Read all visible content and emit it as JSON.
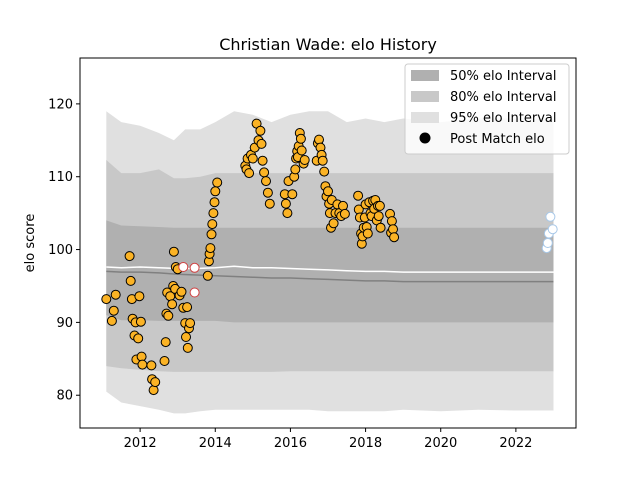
{
  "chart_data": {
    "type": "scatter",
    "title": "Christian Wade: elo History",
    "xlabel": "",
    "ylabel": "elo score",
    "xlim": [
      2010.4,
      2023.6
    ],
    "ylim": [
      75.5,
      126.3
    ],
    "xticks": [
      2012,
      2014,
      2016,
      2018,
      2020,
      2022
    ],
    "yticks": [
      80,
      90,
      100,
      110,
      120
    ],
    "grid": false,
    "legend_position": "top-right",
    "legend": [
      {
        "label": "50% elo Interval",
        "kind": "band",
        "color": "#b0b0b0"
      },
      {
        "label": "80% elo Interval",
        "kind": "band",
        "color": "#c8c8c8"
      },
      {
        "label": "95% elo Interval",
        "kind": "band",
        "color": "#e0e0e0"
      },
      {
        "label": "Post Match elo",
        "kind": "marker",
        "color": "#000000"
      }
    ],
    "colors": {
      "band_50": "#b0b0b0",
      "band_80": "#c8c8c8",
      "band_95": "#e0e0e0",
      "median_line": "#808080",
      "mean_line": "#ffffff",
      "point_fill": "#fbb325",
      "point_edge": "#000000",
      "hollow_edge": "#d04040",
      "future_fill": "#ffffff",
      "future_edge": "#a8c8e8"
    },
    "bands": {
      "x": [
        2011.1,
        2011.5,
        2012.0,
        2012.5,
        2012.9,
        2013.2,
        2013.6,
        2014.0,
        2014.5,
        2015.0,
        2015.5,
        2016.0,
        2016.5,
        2017.0,
        2017.5,
        2018.0,
        2018.5,
        2019.0,
        2020.0,
        2021.0,
        2022.0,
        2023.0
      ],
      "p95_upper": [
        119.0,
        117.5,
        117.0,
        116.0,
        115.0,
        116.5,
        116.5,
        117.5,
        119.0,
        118.5,
        117.5,
        118.5,
        119.0,
        119.0,
        117.5,
        118.0,
        117.5,
        118.0,
        117.5,
        118.0,
        118.0,
        118.0
      ],
      "p80_upper": [
        112.3,
        110.5,
        110.5,
        111.0,
        109.8,
        109.8,
        110.0,
        110.5,
        110.5,
        110.5,
        110.5,
        110.5,
        110.5,
        110.5,
        110.5,
        110.5,
        110.5,
        110.5,
        110.5,
        110.5,
        110.5,
        110.5
      ],
      "p50_upper": [
        104.0,
        103.3,
        103.2,
        103.1,
        103.0,
        103.0,
        103.0,
        103.0,
        103.0,
        103.0,
        103.0,
        103.0,
        103.0,
        103.0,
        103.0,
        103.0,
        103.0,
        103.0,
        103.0,
        103.0,
        103.0,
        103.0
      ],
      "p50_lower": [
        91.0,
        90.3,
        90.3,
        90.2,
        90.2,
        90.2,
        90.2,
        90.2,
        90.0,
        90.0,
        90.0,
        90.0,
        90.0,
        90.0,
        90.0,
        90.0,
        90.0,
        90.0,
        90.0,
        90.0,
        90.0,
        90.0
      ],
      "p80_lower": [
        84.0,
        83.7,
        83.5,
        83.3,
        83.2,
        83.2,
        83.2,
        83.2,
        83.2,
        83.2,
        83.2,
        83.3,
        83.3,
        83.3,
        83.3,
        83.3,
        83.3,
        83.3,
        83.3,
        83.3,
        83.3,
        83.3
      ],
      "p95_lower": [
        80.5,
        79.0,
        78.5,
        78.0,
        77.5,
        77.5,
        77.8,
        78.0,
        78.0,
        78.0,
        78.0,
        78.0,
        78.0,
        77.8,
        77.8,
        77.8,
        77.8,
        78.0,
        77.8,
        78.0,
        77.9,
        77.9
      ]
    },
    "median_line": {
      "x": [
        2011.1,
        2011.5,
        2012.0,
        2012.5,
        2013.0,
        2013.5,
        2014.0,
        2014.5,
        2015.0,
        2015.5,
        2016.0,
        2016.5,
        2017.0,
        2017.5,
        2018.0,
        2018.5,
        2019.0,
        2020.0,
        2021.0,
        2022.0,
        2023.0
      ],
      "y": [
        97.0,
        96.9,
        96.9,
        96.8,
        96.6,
        96.5,
        96.4,
        96.3,
        96.2,
        96.1,
        96.1,
        96.0,
        95.9,
        95.8,
        95.7,
        95.7,
        95.6,
        95.6,
        95.6,
        95.6,
        95.6
      ]
    },
    "mean_line": {
      "x": [
        2011.1,
        2011.5,
        2012.0,
        2012.5,
        2013.0,
        2013.5,
        2014.0,
        2014.5,
        2015.0,
        2015.5,
        2016.0,
        2016.5,
        2017.0,
        2017.5,
        2018.0,
        2018.5,
        2019.0,
        2020.0,
        2021.0,
        2022.0,
        2023.0
      ],
      "y": [
        97.6,
        97.5,
        97.6,
        97.5,
        97.4,
        97.4,
        97.5,
        97.7,
        97.5,
        97.5,
        97.4,
        97.3,
        97.2,
        97.1,
        97.0,
        97.0,
        96.9,
        96.9,
        96.9,
        96.9,
        96.9
      ]
    },
    "points": [
      [
        2011.1,
        93.2
      ],
      [
        2011.25,
        90.2
      ],
      [
        2011.3,
        91.6
      ],
      [
        2011.35,
        93.8
      ],
      [
        2011.72,
        99.1
      ],
      [
        2011.75,
        95.7
      ],
      [
        2011.78,
        93.2
      ],
      [
        2011.8,
        90.5
      ],
      [
        2011.85,
        88.2
      ],
      [
        2011.88,
        90.0
      ],
      [
        2011.9,
        84.9
      ],
      [
        2011.95,
        87.8
      ],
      [
        2011.98,
        93.6
      ],
      [
        2012.02,
        90.1
      ],
      [
        2012.04,
        85.3
      ],
      [
        2012.06,
        84.2
      ],
      [
        2012.3,
        84.1
      ],
      [
        2012.32,
        82.2
      ],
      [
        2012.36,
        80.7
      ],
      [
        2012.4,
        81.8
      ],
      [
        2012.65,
        84.7
      ],
      [
        2012.68,
        87.3
      ],
      [
        2012.7,
        91.2
      ],
      [
        2012.72,
        94.1
      ],
      [
        2012.75,
        90.9
      ],
      [
        2012.8,
        93.6
      ],
      [
        2012.85,
        92.5
      ],
      [
        2012.88,
        95.0
      ],
      [
        2012.9,
        99.7
      ],
      [
        2012.93,
        94.6
      ],
      [
        2012.95,
        97.6
      ],
      [
        2013.0,
        97.3
      ],
      [
        2013.05,
        93.7
      ],
      [
        2013.1,
        94.2
      ],
      [
        2013.15,
        92.0
      ],
      [
        2013.2,
        89.9
      ],
      [
        2013.22,
        88.0
      ],
      [
        2013.25,
        92.1
      ],
      [
        2013.27,
        86.5
      ],
      [
        2013.3,
        89.2
      ],
      [
        2013.33,
        89.9
      ],
      [
        2013.8,
        96.4
      ],
      [
        2013.83,
        98.4
      ],
      [
        2013.85,
        99.4
      ],
      [
        2013.87,
        100.2
      ],
      [
        2013.9,
        102.1
      ],
      [
        2013.92,
        103.5
      ],
      [
        2013.95,
        105.0
      ],
      [
        2013.98,
        106.5
      ],
      [
        2014.0,
        108.0
      ],
      [
        2014.05,
        109.2
      ],
      [
        2014.8,
        111.5
      ],
      [
        2014.83,
        111.0
      ],
      [
        2014.86,
        112.5
      ],
      [
        2014.9,
        110.5
      ],
      [
        2014.95,
        113.0
      ],
      [
        2015.0,
        112.5
      ],
      [
        2015.05,
        114.0
      ],
      [
        2015.1,
        117.3
      ],
      [
        2015.15,
        115.0
      ],
      [
        2015.2,
        116.3
      ],
      [
        2015.23,
        114.5
      ],
      [
        2015.26,
        112.2
      ],
      [
        2015.3,
        110.6
      ],
      [
        2015.35,
        109.4
      ],
      [
        2015.4,
        107.8
      ],
      [
        2015.45,
        106.3
      ],
      [
        2015.85,
        107.6
      ],
      [
        2015.88,
        106.3
      ],
      [
        2015.92,
        105.0
      ],
      [
        2015.95,
        109.4
      ],
      [
        2016.05,
        107.6
      ],
      [
        2016.1,
        110.0
      ],
      [
        2016.13,
        111.0
      ],
      [
        2016.15,
        112.5
      ],
      [
        2016.18,
        113.5
      ],
      [
        2016.2,
        112.7
      ],
      [
        2016.22,
        114.2
      ],
      [
        2016.25,
        116.0
      ],
      [
        2016.28,
        115.2
      ],
      [
        2016.3,
        113.6
      ],
      [
        2016.35,
        111.8
      ],
      [
        2016.38,
        112.3
      ],
      [
        2016.7,
        112.2
      ],
      [
        2016.73,
        114.6
      ],
      [
        2016.76,
        115.1
      ],
      [
        2016.8,
        114.0
      ],
      [
        2016.83,
        113.0
      ],
      [
        2016.86,
        112.2
      ],
      [
        2016.9,
        110.7
      ],
      [
        2016.93,
        108.7
      ],
      [
        2016.96,
        107.3
      ],
      [
        2017.0,
        108.0
      ],
      [
        2017.03,
        106.3
      ],
      [
        2017.05,
        105.0
      ],
      [
        2017.08,
        103.0
      ],
      [
        2017.1,
        106.8
      ],
      [
        2017.15,
        103.6
      ],
      [
        2017.2,
        105.0
      ],
      [
        2017.25,
        106.2
      ],
      [
        2017.3,
        105.0
      ],
      [
        2017.35,
        104.6
      ],
      [
        2017.4,
        106.0
      ],
      [
        2017.45,
        104.9
      ],
      [
        2017.8,
        107.4
      ],
      [
        2017.82,
        105.5
      ],
      [
        2017.85,
        104.4
      ],
      [
        2017.88,
        102.2
      ],
      [
        2017.9,
        100.8
      ],
      [
        2017.92,
        101.8
      ],
      [
        2017.95,
        103.0
      ],
      [
        2017.98,
        104.4
      ],
      [
        2018.0,
        106.2
      ],
      [
        2018.03,
        103.1
      ],
      [
        2018.06,
        102.2
      ],
      [
        2018.1,
        106.5
      ],
      [
        2018.13,
        105.0
      ],
      [
        2018.16,
        104.6
      ],
      [
        2018.2,
        106.7
      ],
      [
        2018.23,
        105.6
      ],
      [
        2018.26,
        106.8
      ],
      [
        2018.3,
        104.0
      ],
      [
        2018.33,
        106.0
      ],
      [
        2018.35,
        104.6
      ],
      [
        2018.38,
        106.0
      ],
      [
        2018.4,
        103.0
      ],
      [
        2018.65,
        104.9
      ],
      [
        2018.68,
        102.3
      ],
      [
        2018.7,
        103.9
      ],
      [
        2018.73,
        102.8
      ],
      [
        2018.76,
        101.7
      ]
    ],
    "hollow_points": [
      [
        2013.15,
        97.6
      ],
      [
        2013.45,
        97.5
      ],
      [
        2013.45,
        94.1
      ]
    ],
    "future_points": [
      [
        2022.82,
        100.2
      ],
      [
        2022.85,
        100.9
      ],
      [
        2022.88,
        102.2
      ],
      [
        2022.92,
        104.5
      ],
      [
        2022.98,
        102.8
      ]
    ]
  }
}
